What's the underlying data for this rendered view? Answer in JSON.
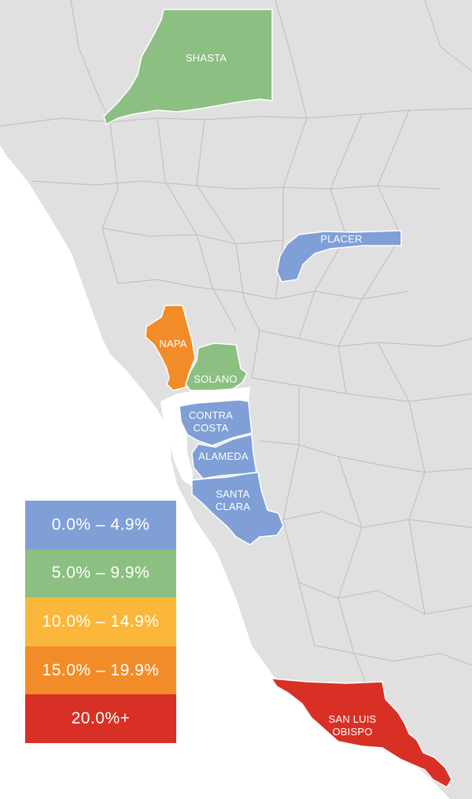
{
  "map": {
    "colors": {
      "state": "#e0e0e0",
      "county_border": "#bcbcbc",
      "water": "#ffffff",
      "label": "#ffffff"
    },
    "counties": [
      {
        "name": "SHASTA",
        "lines": [
          "SHASTA"
        ],
        "range": "5.0% – 9.9%",
        "color": "#8cbf82"
      },
      {
        "name": "PLACER",
        "lines": [
          "PLACER"
        ],
        "range": "0.0% – 4.9%",
        "color": "#7f9fd6"
      },
      {
        "name": "NAPA",
        "lines": [
          "NAPA"
        ],
        "range": "15.0% – 19.9%",
        "color": "#f28c28"
      },
      {
        "name": "SOLANO",
        "lines": [
          "SOLANO"
        ],
        "range": "5.0% – 9.9%",
        "color": "#8cbf82"
      },
      {
        "name": "CONTRA COSTA",
        "lines": [
          "CONTRA",
          "COSTA"
        ],
        "range": "0.0% – 4.9%",
        "color": "#7f9fd6"
      },
      {
        "name": "ALAMEDA",
        "lines": [
          "ALAMEDA"
        ],
        "range": "0.0% – 4.9%",
        "color": "#7f9fd6"
      },
      {
        "name": "SANTA CLARA",
        "lines": [
          "SANTA",
          "CLARA"
        ],
        "range": "0.0% – 4.9%",
        "color": "#7f9fd6"
      },
      {
        "name": "SAN LUIS OBISPO",
        "lines": [
          "SAN LUIS",
          "OBISPO"
        ],
        "range": "20.0%+",
        "color": "#d93025"
      }
    ]
  },
  "legend": {
    "items": [
      {
        "label": "0.0% – 4.9%",
        "color": "#7f9fd6"
      },
      {
        "label": "5.0% – 9.9%",
        "color": "#8cbf82"
      },
      {
        "label": "10.0% – 14.9%",
        "color": "#fbb73a"
      },
      {
        "label": "15.0% – 19.9%",
        "color": "#f28c28"
      },
      {
        "label": "20.0%+",
        "color": "#d93025"
      }
    ]
  }
}
